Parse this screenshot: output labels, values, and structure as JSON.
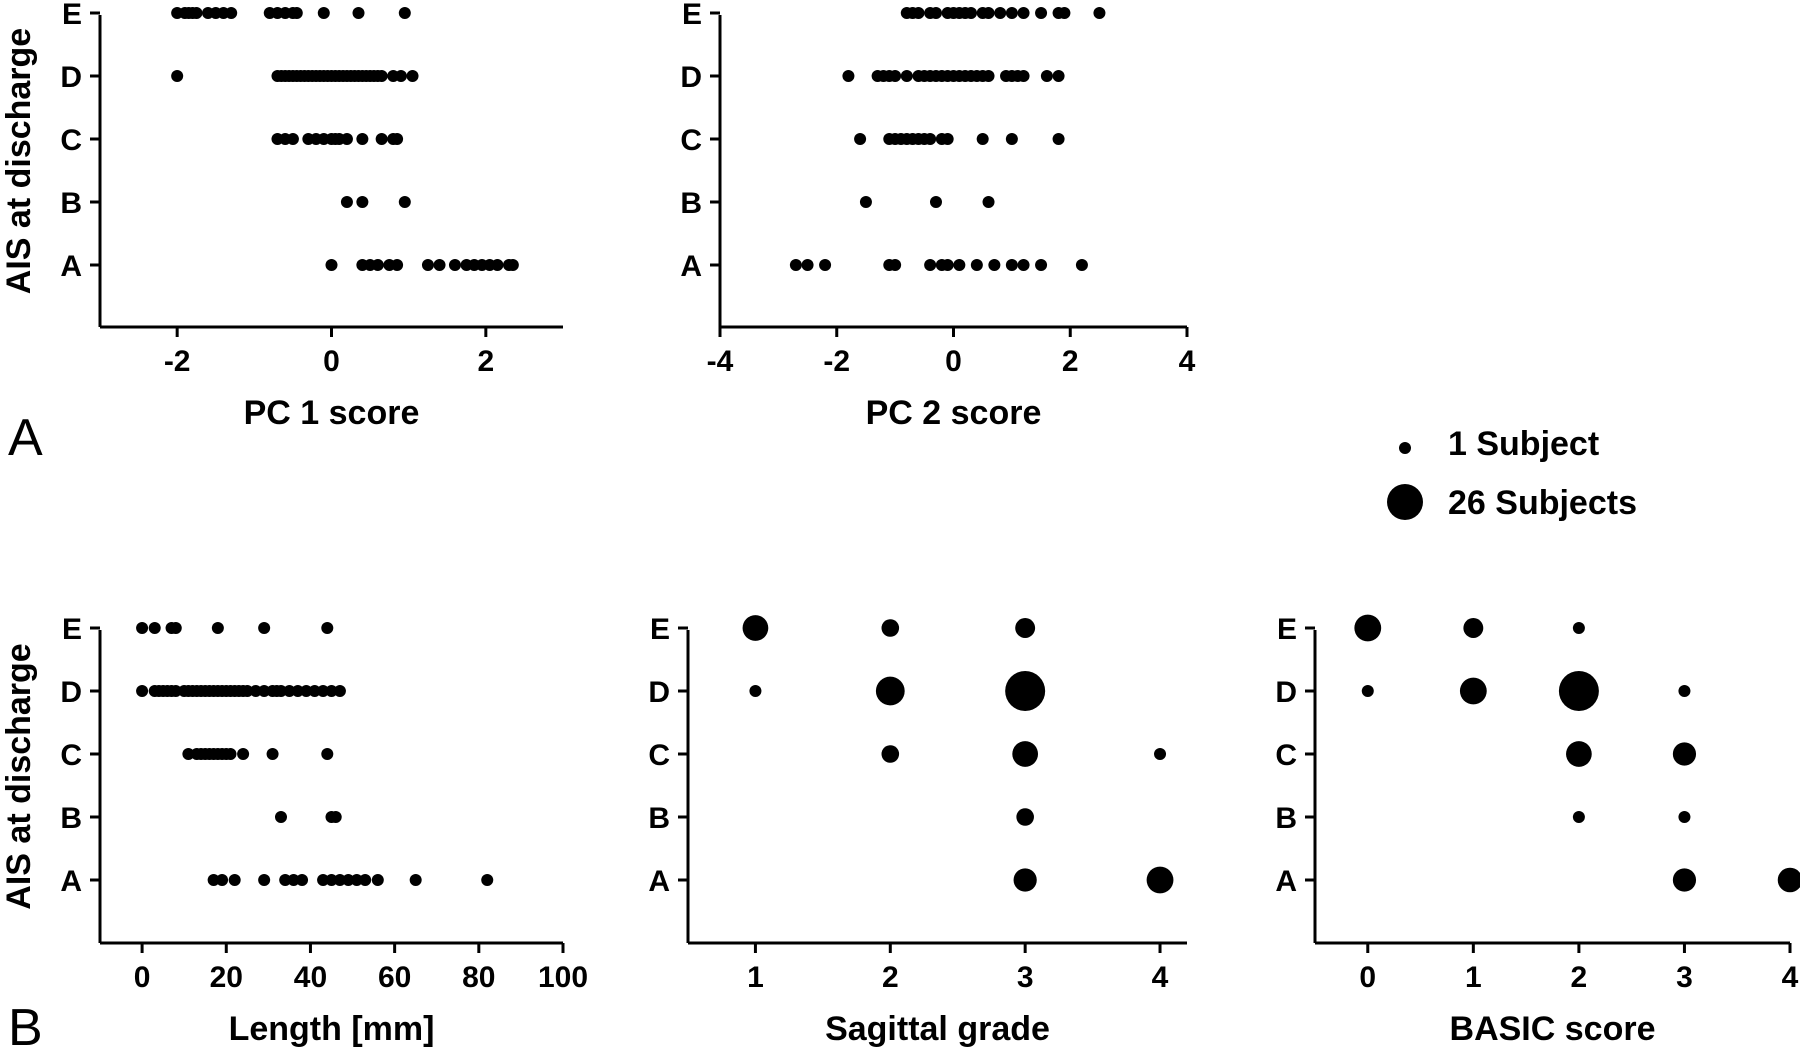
{
  "panel_labels": {
    "top": "A",
    "bottom": "B"
  },
  "legend": {
    "items": [
      {
        "label": "1 Subject",
        "subjects": 1
      },
      {
        "label": "26 Subjects",
        "subjects": 26
      }
    ]
  },
  "chart_data": [
    {
      "id": "pc1",
      "type": "scatter",
      "xlabel": "PC 1 score",
      "ylabel": "AIS at discharge",
      "xlim": [
        -3,
        3
      ],
      "xticks": [
        -2,
        0,
        2
      ],
      "categories": [
        "A",
        "B",
        "C",
        "D",
        "E"
      ],
      "points": {
        "E": [
          -2.0,
          -1.9,
          -1.85,
          -1.8,
          -1.75,
          -1.6,
          -1.5,
          -1.4,
          -1.3,
          -0.8,
          -0.7,
          -0.6,
          -0.5,
          -0.45,
          -0.1,
          0.35,
          0.95
        ],
        "D": [
          -2.0,
          -0.7,
          -0.65,
          -0.6,
          -0.55,
          -0.5,
          -0.45,
          -0.4,
          -0.35,
          -0.3,
          -0.25,
          -0.2,
          -0.15,
          -0.1,
          -0.05,
          0.0,
          0.05,
          0.1,
          0.15,
          0.2,
          0.25,
          0.3,
          0.35,
          0.4,
          0.45,
          0.5,
          0.55,
          0.6,
          0.65,
          0.8,
          0.9,
          1.05
        ],
        "C": [
          -0.7,
          -0.6,
          -0.5,
          -0.3,
          -0.2,
          -0.1,
          0.0,
          0.05,
          0.1,
          0.2,
          0.4,
          0.65,
          0.8,
          0.85
        ],
        "B": [
          0.2,
          0.4,
          0.95
        ],
        "A": [
          0.0,
          0.4,
          0.5,
          0.6,
          0.75,
          0.85,
          1.25,
          1.4,
          1.6,
          1.75,
          1.85,
          1.95,
          2.05,
          2.15,
          2.3,
          2.35
        ]
      }
    },
    {
      "id": "pc2",
      "type": "scatter",
      "xlabel": "PC 2 score",
      "ylabel": "",
      "xlim": [
        -4,
        4
      ],
      "xticks": [
        -4,
        -2,
        0,
        2,
        4
      ],
      "categories": [
        "A",
        "B",
        "C",
        "D",
        "E"
      ],
      "points": {
        "E": [
          -0.8,
          -0.7,
          -0.6,
          -0.4,
          -0.3,
          -0.1,
          0.0,
          0.1,
          0.2,
          0.3,
          0.5,
          0.6,
          0.8,
          1.0,
          1.2,
          1.5,
          1.8,
          1.9,
          2.5
        ],
        "D": [
          -1.8,
          -1.3,
          -1.2,
          -1.1,
          -1.0,
          -0.8,
          -0.6,
          -0.5,
          -0.4,
          -0.3,
          -0.2,
          -0.1,
          0.0,
          0.1,
          0.2,
          0.3,
          0.4,
          0.5,
          0.6,
          0.9,
          1.0,
          1.1,
          1.2,
          1.6,
          1.8
        ],
        "C": [
          -1.6,
          -1.1,
          -1.0,
          -0.9,
          -0.8,
          -0.7,
          -0.6,
          -0.5,
          -0.4,
          -0.2,
          -0.1,
          0.5,
          1.0,
          1.8
        ],
        "B": [
          -1.5,
          -0.3,
          0.6
        ],
        "A": [
          -2.7,
          -2.5,
          -2.2,
          -1.1,
          -1.0,
          -0.4,
          -0.2,
          -0.1,
          0.1,
          0.4,
          0.7,
          1.0,
          1.2,
          1.5,
          2.2
        ]
      }
    },
    {
      "id": "length",
      "type": "scatter",
      "xlabel": "Length [mm]",
      "ylabel": "AIS at discharge",
      "xlim": [
        -10,
        100
      ],
      "xticks": [
        0,
        20,
        40,
        60,
        80,
        100
      ],
      "categories": [
        "A",
        "B",
        "C",
        "D",
        "E"
      ],
      "points": {
        "E": [
          0,
          3,
          7,
          8,
          18,
          29,
          44
        ],
        "D": [
          0,
          3,
          4,
          5,
          6,
          7,
          8,
          10,
          11,
          12,
          13,
          14,
          15,
          16,
          17,
          18,
          19,
          20,
          21,
          22,
          23,
          24,
          25,
          27,
          29,
          31,
          32,
          33,
          35,
          37,
          39,
          41,
          43,
          45,
          47
        ],
        "C": [
          11,
          13,
          14,
          15,
          16,
          17,
          18,
          19,
          20,
          21,
          24,
          31,
          44
        ],
        "B": [
          33,
          45,
          46
        ],
        "A": [
          17,
          19,
          22,
          29,
          34,
          36,
          38,
          43,
          45,
          47,
          49,
          51,
          53,
          56,
          65,
          82
        ]
      }
    },
    {
      "id": "sagittal",
      "type": "scatter",
      "xlabel": "Sagittal grade",
      "ylabel": "",
      "xlim": [
        0.5,
        4.2
      ],
      "xticks": [
        1,
        2,
        3,
        4
      ],
      "categories": [
        "A",
        "B",
        "C",
        "D",
        "E"
      ],
      "bubbles": [
        {
          "x": 1,
          "y": "E",
          "n": 7
        },
        {
          "x": 2,
          "y": "E",
          "n": 2
        },
        {
          "x": 3,
          "y": "E",
          "n": 3
        },
        {
          "x": 1,
          "y": "D",
          "n": 1
        },
        {
          "x": 2,
          "y": "D",
          "n": 10
        },
        {
          "x": 3,
          "y": "D",
          "n": 26
        },
        {
          "x": 2,
          "y": "C",
          "n": 2
        },
        {
          "x": 3,
          "y": "C",
          "n": 7
        },
        {
          "x": 4,
          "y": "C",
          "n": 1
        },
        {
          "x": 3,
          "y": "B",
          "n": 2
        },
        {
          "x": 3,
          "y": "A",
          "n": 5
        },
        {
          "x": 4,
          "y": "A",
          "n": 8
        }
      ]
    },
    {
      "id": "basic",
      "type": "scatter",
      "xlabel": "BASIC score",
      "ylabel": "",
      "xlim": [
        -0.5,
        4.0
      ],
      "xticks": [
        0,
        1,
        2,
        3,
        4
      ],
      "categories": [
        "A",
        "B",
        "C",
        "D",
        "E"
      ],
      "bubbles": [
        {
          "x": 0,
          "y": "E",
          "n": 8
        },
        {
          "x": 1,
          "y": "E",
          "n": 3
        },
        {
          "x": 2,
          "y": "E",
          "n": 1
        },
        {
          "x": 0,
          "y": "D",
          "n": 1
        },
        {
          "x": 1,
          "y": "D",
          "n": 8
        },
        {
          "x": 2,
          "y": "D",
          "n": 26
        },
        {
          "x": 3,
          "y": "D",
          "n": 1
        },
        {
          "x": 2,
          "y": "C",
          "n": 7
        },
        {
          "x": 3,
          "y": "C",
          "n": 5
        },
        {
          "x": 2,
          "y": "B",
          "n": 1
        },
        {
          "x": 3,
          "y": "B",
          "n": 1
        },
        {
          "x": 3,
          "y": "A",
          "n": 5
        },
        {
          "x": 4,
          "y": "A",
          "n": 6
        }
      ]
    }
  ]
}
